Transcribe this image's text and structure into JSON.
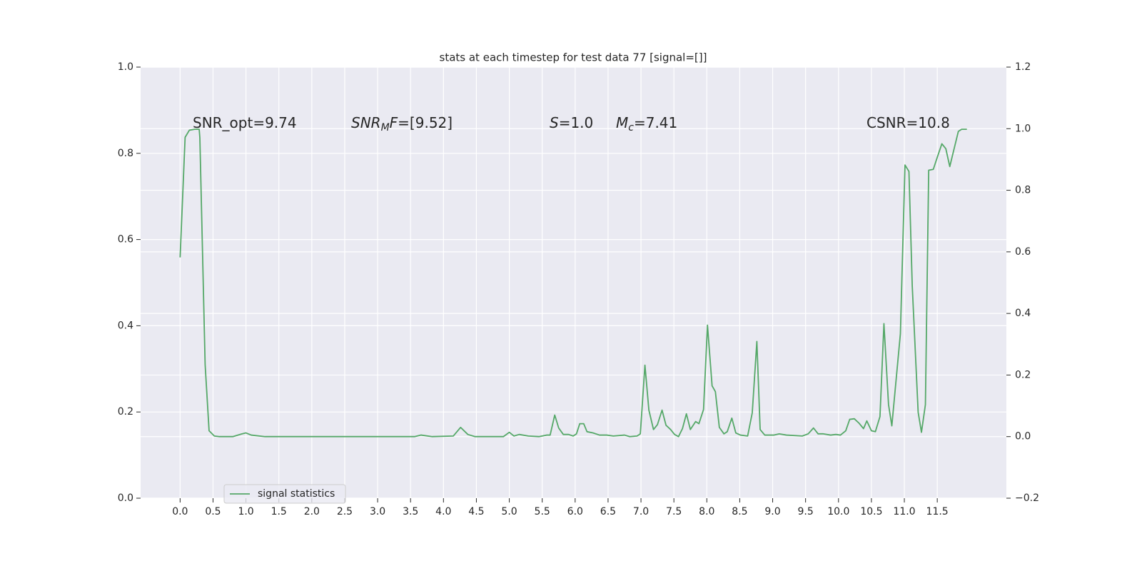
{
  "chart_data": {
    "type": "line",
    "title": "stats at each timestep for test data 77 [signal=[]]",
    "x": [
      0,
      0.076,
      0.14,
      0.22,
      0.29,
      0.3,
      0.38,
      0.44,
      0.52,
      0.6,
      0.8,
      0.94,
      1.0,
      1.08,
      1.29,
      3.56,
      3.66,
      3.83,
      4.15,
      4.26,
      4.37,
      4.48,
      4.91,
      5.0,
      5.07,
      5.15,
      5.29,
      5.45,
      5.57,
      5.62,
      5.69,
      5.75,
      5.82,
      5.9,
      5.97,
      6.02,
      6.07,
      6.13,
      6.18,
      6.27,
      6.37,
      6.48,
      6.58,
      6.75,
      6.83,
      6.94,
      6.99,
      7.06,
      7.12,
      7.19,
      7.25,
      7.32,
      7.38,
      7.45,
      7.51,
      7.57,
      7.63,
      7.69,
      7.75,
      7.83,
      7.88,
      7.95,
      8.01,
      8.08,
      8.13,
      8.19,
      8.26,
      8.31,
      8.38,
      8.44,
      8.51,
      8.62,
      8.69,
      8.76,
      8.81,
      8.88,
      9.02,
      9.1,
      9.21,
      9.45,
      9.54,
      9.62,
      9.69,
      9.77,
      9.88,
      9.96,
      10.03,
      10.11,
      10.17,
      10.24,
      10.31,
      10.38,
      10.43,
      10.5,
      10.56,
      10.63,
      10.69,
      10.76,
      10.81,
      10.94,
      11.01,
      11.07,
      11.12,
      11.21,
      11.26,
      11.32,
      11.37,
      11.44,
      11.5,
      11.57,
      11.63,
      11.69,
      11.82,
      11.87,
      11.95
    ],
    "series": [
      {
        "name": "signal statistics",
        "color": "#55a868",
        "axis": "y2",
        "values": [
          0.582,
          0.972,
          0.995,
          0.998,
          0.998,
          0.97,
          0.234,
          0.019,
          0.002,
          0,
          0,
          0.009,
          0.012,
          0.005,
          0,
          0,
          0.005,
          0,
          0.002,
          0.03,
          0.007,
          0,
          0,
          0.014,
          0.002,
          0.007,
          0.002,
          0,
          0.005,
          0.005,
          0.07,
          0.028,
          0.007,
          0.007,
          0.002,
          0.009,
          0.042,
          0.042,
          0.016,
          0.012,
          0.005,
          0.005,
          0.002,
          0.005,
          0,
          0.002,
          0.009,
          0.232,
          0.086,
          0.023,
          0.039,
          0.086,
          0.037,
          0.023,
          0.007,
          0,
          0.026,
          0.074,
          0.023,
          0.049,
          0.042,
          0.088,
          0.362,
          0.165,
          0.146,
          0.03,
          0.009,
          0.016,
          0.06,
          0.012,
          0.005,
          0.002,
          0.077,
          0.309,
          0.023,
          0.005,
          0.005,
          0.009,
          0.005,
          0.002,
          0.009,
          0.028,
          0.009,
          0.009,
          0.005,
          0.007,
          0.005,
          0.019,
          0.056,
          0.058,
          0.044,
          0.026,
          0.051,
          0.019,
          0.016,
          0.065,
          0.367,
          0.104,
          0.035,
          0.334,
          0.882,
          0.861,
          0.49,
          0.079,
          0.014,
          0.104,
          0.865,
          0.868,
          0.907,
          0.951,
          0.935,
          0.877,
          0.991,
          0.998,
          0.998
        ]
      }
    ],
    "xlim": [
      -0.6,
      12.55
    ],
    "xticks": [
      {
        "value": 0,
        "label": "0.0"
      },
      0.5,
      {
        "value": 1,
        "label": "1.0"
      },
      1.5,
      {
        "value": 2,
        "label": "2.0"
      },
      2.5,
      {
        "value": 3,
        "label": "3.0"
      },
      3.5,
      {
        "value": 4,
        "label": "4.0"
      },
      4.5,
      {
        "value": 5,
        "label": "5.0"
      },
      5.5,
      {
        "value": 6,
        "label": "6.0"
      },
      6.5,
      {
        "value": 7,
        "label": "7.0"
      },
      7.5,
      {
        "value": 8,
        "label": "8.0"
      },
      8.5,
      {
        "value": 9,
        "label": "9.0"
      },
      9.5,
      {
        "value": 10,
        "label": "10.0"
      },
      10.5,
      {
        "value": 11,
        "label": "11.0"
      },
      11.5
    ],
    "ylim": [
      0,
      1
    ],
    "yticks": [
      {
        "value": 0,
        "label": "0.0"
      },
      0.2,
      0.4,
      0.6,
      0.8,
      {
        "value": 1,
        "label": "1.0"
      }
    ],
    "y2lim": [
      -0.2,
      1.2
    ],
    "y2ticks": [
      {
        "value": -0.2,
        "label": "−0.2"
      },
      {
        "value": 0,
        "label": "0.0"
      },
      0.2,
      0.4,
      0.6,
      0.8,
      {
        "value": 1,
        "label": "1.0"
      },
      1.2
    ],
    "grid": true,
    "legend": "lower left",
    "annotations": [
      {
        "parts": [
          {
            "text": "SNR_opt=9.74"
          }
        ]
      },
      {
        "parts": [
          {
            "text": "SNR",
            "italic": true
          },
          {
            "text": "M",
            "italic": true,
            "sub": true
          },
          {
            "text": "F",
            "italic": true
          },
          {
            "text": "=[9.52]"
          }
        ]
      },
      {
        "parts": [
          {
            "text": "S",
            "italic": true
          },
          {
            "text": "=1.0"
          }
        ]
      },
      {
        "parts": [
          {
            "text": "M",
            "italic": true
          },
          {
            "text": "c",
            "italic": true,
            "sub": true
          },
          {
            "text": "=7.41"
          }
        ]
      },
      {
        "parts": [
          {
            "text": "CSNR=10.8"
          }
        ]
      }
    ]
  }
}
